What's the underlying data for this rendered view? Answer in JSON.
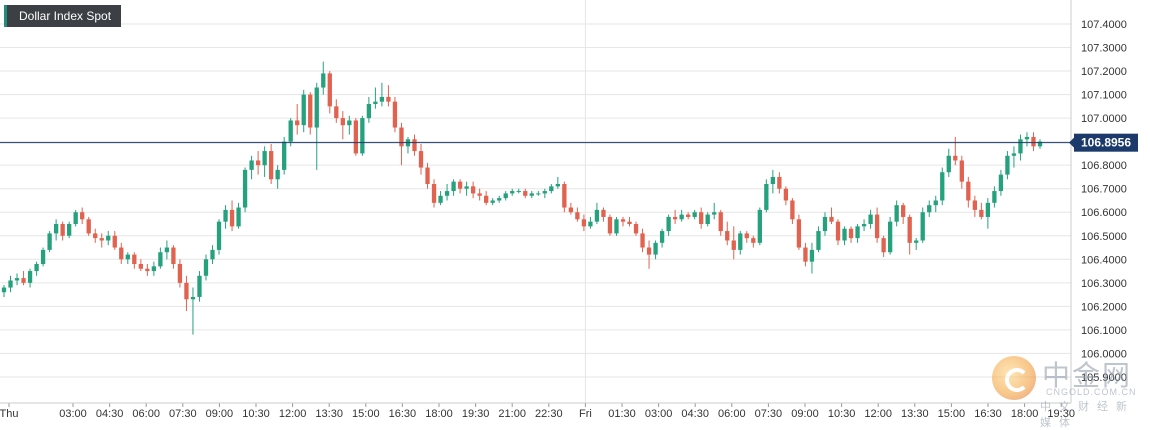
{
  "chart_data": {
    "type": "candlestick",
    "title": "Dollar Index Spot",
    "current_price": "106.8956",
    "y_ticks": [
      "107.4000",
      "107.3000",
      "107.2000",
      "107.1000",
      "107.0000",
      "106.9000",
      "106.8000",
      "106.7000",
      "106.6000",
      "106.5000",
      "106.4000",
      "106.3000",
      "106.2000",
      "106.1000",
      "106.0000",
      "105.9000"
    ],
    "x_ticks": [
      "Thu",
      "03:00",
      "04:30",
      "06:00",
      "07:30",
      "09:00",
      "10:30",
      "12:00",
      "13:30",
      "15:00",
      "16:30",
      "18:00",
      "19:30",
      "21:00",
      "22:30",
      "Fri",
      "01:30",
      "03:00",
      "04:30",
      "06:00",
      "07:30",
      "09:00",
      "10:30",
      "12:00",
      "13:30",
      "15:00",
      "16:30",
      "18:00",
      "19:30"
    ],
    "ylim": [
      105.89,
      107.46
    ],
    "grid": true,
    "colors": {
      "up": "#26a17e",
      "down": "#e0624f",
      "current_line": "#1b3a6b",
      "grid": "#e6e6e6"
    },
    "series": [
      {
        "o": 106.26,
        "h": 106.29,
        "l": 106.24,
        "c": 106.28
      },
      {
        "o": 106.28,
        "h": 106.33,
        "l": 106.26,
        "c": 106.31
      },
      {
        "o": 106.31,
        "h": 106.34,
        "l": 106.29,
        "c": 106.32
      },
      {
        "o": 106.32,
        "h": 106.35,
        "l": 106.29,
        "c": 106.3
      },
      {
        "o": 106.3,
        "h": 106.36,
        "l": 106.28,
        "c": 106.35
      },
      {
        "o": 106.35,
        "h": 106.39,
        "l": 106.33,
        "c": 106.38
      },
      {
        "o": 106.38,
        "h": 106.45,
        "l": 106.37,
        "c": 106.44
      },
      {
        "o": 106.44,
        "h": 106.52,
        "l": 106.43,
        "c": 106.51
      },
      {
        "o": 106.51,
        "h": 106.57,
        "l": 106.48,
        "c": 106.55
      },
      {
        "o": 106.55,
        "h": 106.56,
        "l": 106.48,
        "c": 106.5
      },
      {
        "o": 106.5,
        "h": 106.56,
        "l": 106.49,
        "c": 106.55
      },
      {
        "o": 106.55,
        "h": 106.61,
        "l": 106.54,
        "c": 106.6
      },
      {
        "o": 106.6,
        "h": 106.62,
        "l": 106.55,
        "c": 106.57
      },
      {
        "o": 106.57,
        "h": 106.58,
        "l": 106.5,
        "c": 106.51
      },
      {
        "o": 106.51,
        "h": 106.53,
        "l": 106.47,
        "c": 106.49
      },
      {
        "o": 106.49,
        "h": 106.51,
        "l": 106.45,
        "c": 106.48
      },
      {
        "o": 106.48,
        "h": 106.52,
        "l": 106.46,
        "c": 106.5
      },
      {
        "o": 106.5,
        "h": 106.52,
        "l": 106.44,
        "c": 106.45
      },
      {
        "o": 106.45,
        "h": 106.47,
        "l": 106.38,
        "c": 106.4
      },
      {
        "o": 106.4,
        "h": 106.43,
        "l": 106.38,
        "c": 106.42
      },
      {
        "o": 106.42,
        "h": 106.43,
        "l": 106.36,
        "c": 106.38
      },
      {
        "o": 106.38,
        "h": 106.4,
        "l": 106.35,
        "c": 106.36
      },
      {
        "o": 106.36,
        "h": 106.38,
        "l": 106.33,
        "c": 106.35
      },
      {
        "o": 106.35,
        "h": 106.39,
        "l": 106.33,
        "c": 106.37
      },
      {
        "o": 106.37,
        "h": 106.45,
        "l": 106.36,
        "c": 106.43
      },
      {
        "o": 106.43,
        "h": 106.48,
        "l": 106.4,
        "c": 106.45
      },
      {
        "o": 106.45,
        "h": 106.46,
        "l": 106.36,
        "c": 106.38
      },
      {
        "o": 106.38,
        "h": 106.4,
        "l": 106.28,
        "c": 106.3
      },
      {
        "o": 106.3,
        "h": 106.33,
        "l": 106.18,
        "c": 106.23
      },
      {
        "o": 106.23,
        "h": 106.28,
        "l": 106.08,
        "c": 106.24
      },
      {
        "o": 106.24,
        "h": 106.35,
        "l": 106.22,
        "c": 106.33
      },
      {
        "o": 106.33,
        "h": 106.42,
        "l": 106.31,
        "c": 106.4
      },
      {
        "o": 106.4,
        "h": 106.46,
        "l": 106.38,
        "c": 106.44
      },
      {
        "o": 106.44,
        "h": 106.57,
        "l": 106.42,
        "c": 106.56
      },
      {
        "o": 106.56,
        "h": 106.63,
        "l": 106.53,
        "c": 106.61
      },
      {
        "o": 106.61,
        "h": 106.65,
        "l": 106.52,
        "c": 106.54
      },
      {
        "o": 106.54,
        "h": 106.64,
        "l": 106.53,
        "c": 106.62
      },
      {
        "o": 106.62,
        "h": 106.79,
        "l": 106.6,
        "c": 106.78
      },
      {
        "o": 106.78,
        "h": 106.84,
        "l": 106.74,
        "c": 106.82
      },
      {
        "o": 106.82,
        "h": 106.86,
        "l": 106.76,
        "c": 106.8
      },
      {
        "o": 106.8,
        "h": 106.88,
        "l": 106.75,
        "c": 106.86
      },
      {
        "o": 106.86,
        "h": 106.89,
        "l": 106.72,
        "c": 106.74
      },
      {
        "o": 106.74,
        "h": 106.8,
        "l": 106.7,
        "c": 106.78
      },
      {
        "o": 106.78,
        "h": 106.92,
        "l": 106.76,
        "c": 106.9
      },
      {
        "o": 106.9,
        "h": 107.0,
        "l": 106.88,
        "c": 106.99
      },
      {
        "o": 106.99,
        "h": 107.06,
        "l": 106.93,
        "c": 106.97
      },
      {
        "o": 106.97,
        "h": 107.12,
        "l": 106.94,
        "c": 107.1
      },
      {
        "o": 107.1,
        "h": 107.11,
        "l": 106.93,
        "c": 106.96
      },
      {
        "o": 106.96,
        "h": 107.15,
        "l": 106.78,
        "c": 107.13
      },
      {
        "o": 107.13,
        "h": 107.24,
        "l": 107.1,
        "c": 107.19
      },
      {
        "o": 107.19,
        "h": 107.2,
        "l": 107.02,
        "c": 107.05
      },
      {
        "o": 107.05,
        "h": 107.08,
        "l": 106.98,
        "c": 107.0
      },
      {
        "o": 107.0,
        "h": 107.03,
        "l": 106.91,
        "c": 106.97
      },
      {
        "o": 106.97,
        "h": 107.01,
        "l": 106.93,
        "c": 106.99
      },
      {
        "o": 106.99,
        "h": 107.0,
        "l": 106.84,
        "c": 106.85
      },
      {
        "o": 106.85,
        "h": 107.01,
        "l": 106.84,
        "c": 107.0
      },
      {
        "o": 107.0,
        "h": 107.09,
        "l": 106.98,
        "c": 107.06
      },
      {
        "o": 107.06,
        "h": 107.13,
        "l": 107.04,
        "c": 107.07
      },
      {
        "o": 107.07,
        "h": 107.15,
        "l": 107.05,
        "c": 107.09
      },
      {
        "o": 107.09,
        "h": 107.14,
        "l": 107.05,
        "c": 107.07
      },
      {
        "o": 107.07,
        "h": 107.09,
        "l": 106.94,
        "c": 106.96
      },
      {
        "o": 106.96,
        "h": 106.98,
        "l": 106.8,
        "c": 106.88
      },
      {
        "o": 106.88,
        "h": 106.92,
        "l": 106.85,
        "c": 106.91
      },
      {
        "o": 106.91,
        "h": 106.93,
        "l": 106.84,
        "c": 106.86
      },
      {
        "o": 106.86,
        "h": 106.89,
        "l": 106.76,
        "c": 106.79
      },
      {
        "o": 106.79,
        "h": 106.81,
        "l": 106.7,
        "c": 106.72
      },
      {
        "o": 106.72,
        "h": 106.74,
        "l": 106.62,
        "c": 106.64
      },
      {
        "o": 106.64,
        "h": 106.69,
        "l": 106.63,
        "c": 106.67
      },
      {
        "o": 106.67,
        "h": 106.72,
        "l": 106.65,
        "c": 106.69
      },
      {
        "o": 106.69,
        "h": 106.74,
        "l": 106.67,
        "c": 106.73
      },
      {
        "o": 106.73,
        "h": 106.74,
        "l": 106.68,
        "c": 106.7
      },
      {
        "o": 106.7,
        "h": 106.73,
        "l": 106.67,
        "c": 106.71
      },
      {
        "o": 106.71,
        "h": 106.73,
        "l": 106.66,
        "c": 106.68
      },
      {
        "o": 106.68,
        "h": 106.7,
        "l": 106.65,
        "c": 106.67
      },
      {
        "o": 106.67,
        "h": 106.69,
        "l": 106.63,
        "c": 106.64
      },
      {
        "o": 106.64,
        "h": 106.66,
        "l": 106.63,
        "c": 106.65
      },
      {
        "o": 106.65,
        "h": 106.67,
        "l": 106.64,
        "c": 106.66
      },
      {
        "o": 106.66,
        "h": 106.69,
        "l": 106.65,
        "c": 106.68
      },
      {
        "o": 106.68,
        "h": 106.7,
        "l": 106.67,
        "c": 106.69
      },
      {
        "o": 106.69,
        "h": 106.7,
        "l": 106.68,
        "c": 106.69
      },
      {
        "o": 106.69,
        "h": 106.7,
        "l": 106.66,
        "c": 106.67
      },
      {
        "o": 106.67,
        "h": 106.69,
        "l": 106.66,
        "c": 106.68
      },
      {
        "o": 106.68,
        "h": 106.69,
        "l": 106.67,
        "c": 106.68
      },
      {
        "o": 106.68,
        "h": 106.7,
        "l": 106.66,
        "c": 106.69
      },
      {
        "o": 106.69,
        "h": 106.72,
        "l": 106.68,
        "c": 106.71
      },
      {
        "o": 106.71,
        "h": 106.75,
        "l": 106.7,
        "c": 106.72
      },
      {
        "o": 106.72,
        "h": 106.73,
        "l": 106.6,
        "c": 106.62
      },
      {
        "o": 106.62,
        "h": 106.64,
        "l": 106.59,
        "c": 106.6
      },
      {
        "o": 106.6,
        "h": 106.62,
        "l": 106.56,
        "c": 106.57
      },
      {
        "o": 106.57,
        "h": 106.59,
        "l": 106.52,
        "c": 106.54
      },
      {
        "o": 106.54,
        "h": 106.58,
        "l": 106.53,
        "c": 106.56
      },
      {
        "o": 106.56,
        "h": 106.64,
        "l": 106.55,
        "c": 106.61
      },
      {
        "o": 106.61,
        "h": 106.62,
        "l": 106.56,
        "c": 106.58
      },
      {
        "o": 106.58,
        "h": 106.59,
        "l": 106.5,
        "c": 106.51
      },
      {
        "o": 106.51,
        "h": 106.58,
        "l": 106.5,
        "c": 106.57
      },
      {
        "o": 106.57,
        "h": 106.58,
        "l": 106.54,
        "c": 106.56
      },
      {
        "o": 106.56,
        "h": 106.58,
        "l": 106.54,
        "c": 106.55
      },
      {
        "o": 106.55,
        "h": 106.56,
        "l": 106.5,
        "c": 106.51
      },
      {
        "o": 106.51,
        "h": 106.53,
        "l": 106.43,
        "c": 106.45
      },
      {
        "o": 106.45,
        "h": 106.48,
        "l": 106.36,
        "c": 106.42
      },
      {
        "o": 106.42,
        "h": 106.48,
        "l": 106.4,
        "c": 106.47
      },
      {
        "o": 106.47,
        "h": 106.53,
        "l": 106.45,
        "c": 106.52
      },
      {
        "o": 106.52,
        "h": 106.59,
        "l": 106.5,
        "c": 106.58
      },
      {
        "o": 106.58,
        "h": 106.61,
        "l": 106.55,
        "c": 106.57
      },
      {
        "o": 106.57,
        "h": 106.61,
        "l": 106.56,
        "c": 106.59
      },
      {
        "o": 106.59,
        "h": 106.6,
        "l": 106.57,
        "c": 106.58
      },
      {
        "o": 106.58,
        "h": 106.61,
        "l": 106.57,
        "c": 106.6
      },
      {
        "o": 106.6,
        "h": 106.62,
        "l": 106.53,
        "c": 106.55
      },
      {
        "o": 106.55,
        "h": 106.6,
        "l": 106.54,
        "c": 106.59
      },
      {
        "o": 106.59,
        "h": 106.64,
        "l": 106.57,
        "c": 106.6
      },
      {
        "o": 106.6,
        "h": 106.61,
        "l": 106.5,
        "c": 106.52
      },
      {
        "o": 106.52,
        "h": 106.56,
        "l": 106.46,
        "c": 106.48
      },
      {
        "o": 106.48,
        "h": 106.54,
        "l": 106.4,
        "c": 106.44
      },
      {
        "o": 106.44,
        "h": 106.52,
        "l": 106.42,
        "c": 106.51
      },
      {
        "o": 106.51,
        "h": 106.52,
        "l": 106.47,
        "c": 106.49
      },
      {
        "o": 106.49,
        "h": 106.5,
        "l": 106.45,
        "c": 106.47
      },
      {
        "o": 106.47,
        "h": 106.62,
        "l": 106.46,
        "c": 106.61
      },
      {
        "o": 106.61,
        "h": 106.74,
        "l": 106.6,
        "c": 106.72
      },
      {
        "o": 106.72,
        "h": 106.78,
        "l": 106.68,
        "c": 106.75
      },
      {
        "o": 106.75,
        "h": 106.77,
        "l": 106.68,
        "c": 106.7
      },
      {
        "o": 106.7,
        "h": 106.71,
        "l": 106.63,
        "c": 106.65
      },
      {
        "o": 106.65,
        "h": 106.66,
        "l": 106.55,
        "c": 106.57
      },
      {
        "o": 106.57,
        "h": 106.59,
        "l": 106.44,
        "c": 106.45
      },
      {
        "o": 106.45,
        "h": 106.47,
        "l": 106.37,
        "c": 106.39
      },
      {
        "o": 106.39,
        "h": 106.47,
        "l": 106.34,
        "c": 106.44
      },
      {
        "o": 106.44,
        "h": 106.54,
        "l": 106.43,
        "c": 106.52
      },
      {
        "o": 106.52,
        "h": 106.6,
        "l": 106.5,
        "c": 106.58
      },
      {
        "o": 106.58,
        "h": 106.62,
        "l": 106.55,
        "c": 106.56
      },
      {
        "o": 106.56,
        "h": 106.57,
        "l": 106.46,
        "c": 106.48
      },
      {
        "o": 106.48,
        "h": 106.54,
        "l": 106.46,
        "c": 106.53
      },
      {
        "o": 106.53,
        "h": 106.54,
        "l": 106.47,
        "c": 106.49
      },
      {
        "o": 106.49,
        "h": 106.55,
        "l": 106.47,
        "c": 106.54
      },
      {
        "o": 106.54,
        "h": 106.57,
        "l": 106.52,
        "c": 106.55
      },
      {
        "o": 106.55,
        "h": 106.61,
        "l": 106.53,
        "c": 106.59
      },
      {
        "o": 106.59,
        "h": 106.62,
        "l": 106.47,
        "c": 106.49
      },
      {
        "o": 106.49,
        "h": 106.5,
        "l": 106.41,
        "c": 106.43
      },
      {
        "o": 106.43,
        "h": 106.58,
        "l": 106.42,
        "c": 106.56
      },
      {
        "o": 106.56,
        "h": 106.65,
        "l": 106.54,
        "c": 106.63
      },
      {
        "o": 106.63,
        "h": 106.64,
        "l": 106.55,
        "c": 106.58
      },
      {
        "o": 106.58,
        "h": 106.59,
        "l": 106.42,
        "c": 106.47
      },
      {
        "o": 106.47,
        "h": 106.49,
        "l": 106.44,
        "c": 106.48
      },
      {
        "o": 106.48,
        "h": 106.62,
        "l": 106.47,
        "c": 106.6
      },
      {
        "o": 106.6,
        "h": 106.65,
        "l": 106.58,
        "c": 106.63
      },
      {
        "o": 106.63,
        "h": 106.67,
        "l": 106.6,
        "c": 106.65
      },
      {
        "o": 106.65,
        "h": 106.79,
        "l": 106.63,
        "c": 106.77
      },
      {
        "o": 106.77,
        "h": 106.87,
        "l": 106.75,
        "c": 106.84
      },
      {
        "o": 106.84,
        "h": 106.92,
        "l": 106.8,
        "c": 106.82
      },
      {
        "o": 106.82,
        "h": 106.84,
        "l": 106.7,
        "c": 106.73
      },
      {
        "o": 106.73,
        "h": 106.75,
        "l": 106.62,
        "c": 106.65
      },
      {
        "o": 106.65,
        "h": 106.67,
        "l": 106.58,
        "c": 106.61
      },
      {
        "o": 106.61,
        "h": 106.64,
        "l": 106.57,
        "c": 106.58
      },
      {
        "o": 106.58,
        "h": 106.66,
        "l": 106.53,
        "c": 106.64
      },
      {
        "o": 106.64,
        "h": 106.71,
        "l": 106.62,
        "c": 106.69
      },
      {
        "o": 106.69,
        "h": 106.78,
        "l": 106.67,
        "c": 106.76
      },
      {
        "o": 106.76,
        "h": 106.86,
        "l": 106.74,
        "c": 106.84
      },
      {
        "o": 106.84,
        "h": 106.88,
        "l": 106.79,
        "c": 106.85
      },
      {
        "o": 106.85,
        "h": 106.93,
        "l": 106.82,
        "c": 106.91
      },
      {
        "o": 106.91,
        "h": 106.94,
        "l": 106.88,
        "c": 106.92
      },
      {
        "o": 106.92,
        "h": 106.94,
        "l": 106.86,
        "c": 106.88
      },
      {
        "o": 106.88,
        "h": 106.91,
        "l": 106.87,
        "c": 106.9
      }
    ]
  },
  "watermark": {
    "name": "中金网",
    "domain": "CNGOLD.COM.CN",
    "subtitle": "中文财经新媒体"
  }
}
